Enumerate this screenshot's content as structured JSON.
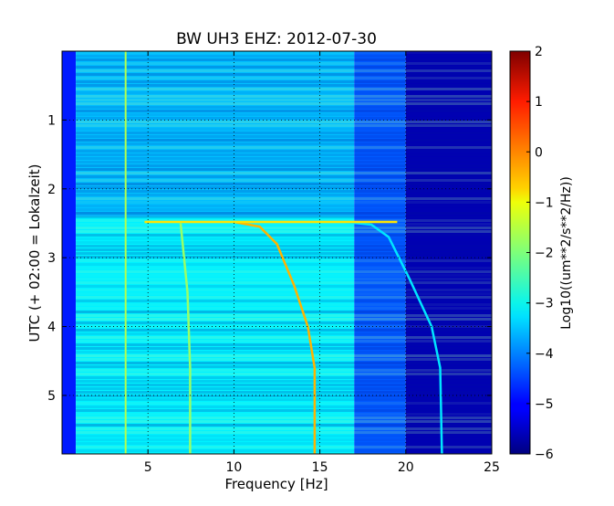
{
  "chart_data": {
    "type": "heatmap",
    "title": "BW UH3 EHZ: 2012-07-30",
    "xlabel": "Frequency [Hz]",
    "ylabel": "UTC (+ 02:00 = Lokalzeit)",
    "xlim": [
      0,
      25
    ],
    "ylim": [
      5.85,
      0
    ],
    "xticks": [
      "5",
      "10",
      "15",
      "20",
      "25"
    ],
    "yticks": [
      "1",
      "2",
      "3",
      "4",
      "5"
    ],
    "grid": true,
    "colormap": "jet",
    "colorbar": {
      "label": "Log10((um**2/s**2/Hz))",
      "range": [
        -6,
        2
      ],
      "ticks": [
        "2",
        "1",
        "0",
        "−1",
        "−2",
        "−3",
        "−4",
        "−5",
        "−6"
      ]
    },
    "regions": [
      {
        "label": "low-frequency dark band",
        "x": [
          0,
          0.8
        ],
        "value": -4.8
      },
      {
        "label": "background 1-17 Hz, hours 0-2.4",
        "x": [
          0.8,
          17
        ],
        "y": [
          0,
          2.4
        ],
        "value": -3.5
      },
      {
        "label": "background 1-17 Hz, hours 2.4-5.85",
        "x": [
          0.8,
          17
        ],
        "y": [
          2.4,
          5.85
        ],
        "value": -3.1
      },
      {
        "label": "background 17-20 Hz",
        "x": [
          17,
          20
        ],
        "value": -4.3
      },
      {
        "label": "background above 20 Hz",
        "x": [
          20,
          25
        ],
        "value": -5.6
      }
    ],
    "series": [
      {
        "kind": "line",
        "x": [
          3.7,
          3.7
        ],
        "y": [
          0,
          5.85
        ],
        "value": -1.6
      },
      {
        "kind": "line",
        "x": [
          6.9,
          7.3,
          7.45,
          7.45
        ],
        "y": [
          2.5,
          3.5,
          4.6,
          5.85
        ],
        "value": -1.8
      },
      {
        "kind": "line",
        "x": [
          10.0,
          11.5,
          12.5,
          13.5,
          14.3,
          14.7,
          14.7
        ],
        "y": [
          2.48,
          2.55,
          2.8,
          3.4,
          4.0,
          4.6,
          5.85
        ],
        "value": -0.4
      },
      {
        "kind": "line",
        "x": [
          16.5,
          18.0,
          19.0,
          20.2,
          21.5,
          22.0,
          22.1
        ],
        "y": [
          2.48,
          2.52,
          2.7,
          3.3,
          4.0,
          4.6,
          5.85
        ],
        "value": -3.2
      },
      {
        "kind": "line",
        "x": [
          4.8,
          19.5
        ],
        "y": [
          2.48,
          2.48
        ],
        "value": -0.8
      }
    ]
  }
}
